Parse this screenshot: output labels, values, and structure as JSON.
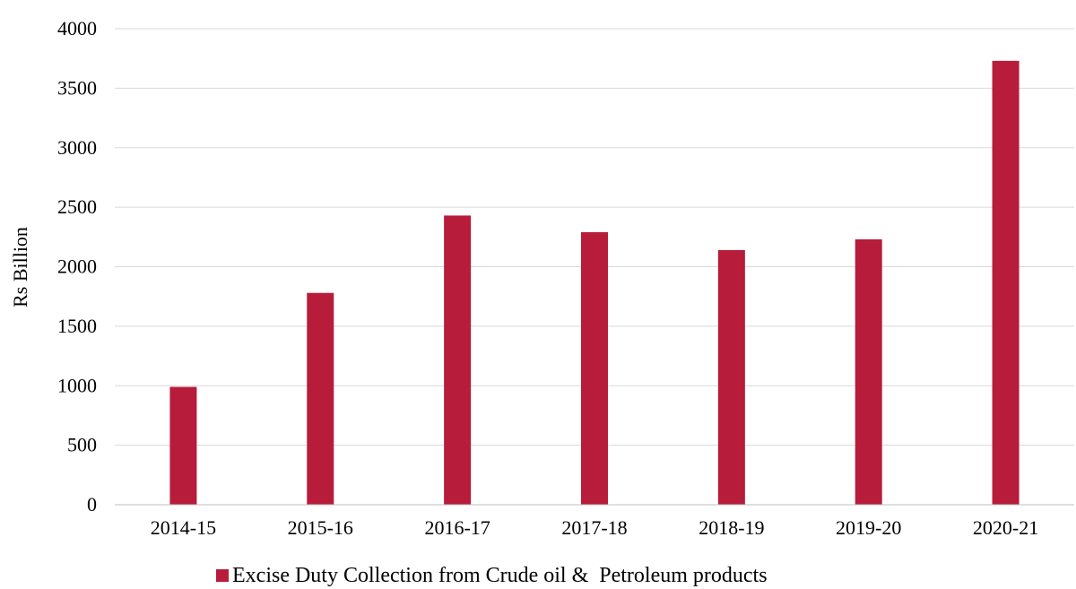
{
  "chart_data": {
    "type": "bar",
    "title": "",
    "xlabel": "",
    "ylabel": "Rs Billion",
    "ylim": [
      0,
      4000
    ],
    "yticks": [
      0,
      500,
      1000,
      1500,
      2000,
      2500,
      3000,
      3500,
      4000
    ],
    "grid": true,
    "legend_position": "bottom",
    "categories": [
      "2014-15",
      "2015-16",
      "2016-17",
      "2017-18",
      "2018-19",
      "2019-20",
      "2020-21"
    ],
    "series": [
      {
        "name": "Excise Duty Collection from Crude oil &  Petroleum products",
        "color": "#b71c3a",
        "values": [
          990,
          1780,
          2430,
          2290,
          2140,
          2230,
          3730
        ]
      }
    ]
  }
}
